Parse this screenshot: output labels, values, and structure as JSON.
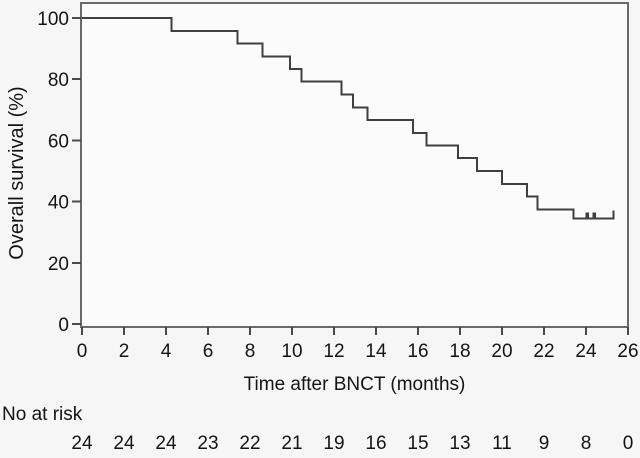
{
  "chart_data": {
    "type": "line",
    "style": "kaplan-meier-step",
    "title": "",
    "xlabel": "Time after BNCT (months)",
    "ylabel": "Overall survival (%)",
    "xlim": [
      0,
      26
    ],
    "ylim": [
      0,
      100
    ],
    "x_ticks": [
      0,
      2,
      4,
      6,
      8,
      10,
      12,
      14,
      16,
      18,
      20,
      22,
      24,
      26
    ],
    "y_ticks": [
      0,
      20,
      40,
      60,
      80,
      100
    ],
    "grid": false,
    "legend": false,
    "series": [
      {
        "name": "Overall survival",
        "steps": [
          [
            0,
            100
          ],
          [
            4.25,
            95.8
          ],
          [
            7.4,
            91.7
          ],
          [
            8.6,
            87.5
          ],
          [
            9.9,
            83.3
          ],
          [
            10.45,
            79.2
          ],
          [
            12.35,
            75
          ],
          [
            12.9,
            70.8
          ],
          [
            13.6,
            66.7
          ],
          [
            15.75,
            62.5
          ],
          [
            16.4,
            58.3
          ],
          [
            17.9,
            54.2
          ],
          [
            18.8,
            50
          ],
          [
            20.0,
            45.8
          ],
          [
            21.2,
            41.7
          ],
          [
            21.7,
            37.5
          ],
          [
            23.4,
            34.4
          ]
        ],
        "end_time": 25.3,
        "censor_marks": [
          {
            "t": 24.05,
            "s": 34.4
          },
          {
            "t": 24.4,
            "s": 34.4
          }
        ]
      }
    ]
  },
  "risk_table": {
    "label": "No at risk",
    "times": [
      0,
      2,
      4,
      6,
      8,
      10,
      12,
      14,
      16,
      18,
      20,
      22,
      24,
      26
    ],
    "counts": [
      24,
      24,
      24,
      23,
      22,
      21,
      19,
      16,
      15,
      13,
      11,
      9,
      8,
      0
    ]
  },
  "colors": {
    "curve": "#3f3f3f",
    "frame": "#6a6a6a",
    "tick": "#4a4a4a",
    "text": "#141414",
    "background": "#f6f6f6",
    "plot_background": "#fbfbfb"
  }
}
